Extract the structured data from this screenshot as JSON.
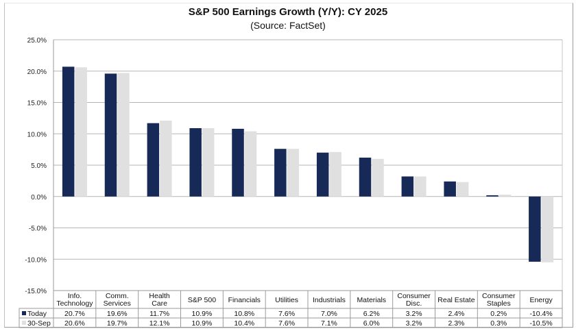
{
  "chart_data": {
    "type": "bar",
    "title": "S&P 500 Earnings Growth (Y/Y): CY 2025",
    "subtitle": "(Source: FactSet)",
    "xlabel": "",
    "ylabel": "",
    "ylim": [
      -15,
      25
    ],
    "yticks": [
      25,
      20,
      15,
      10,
      5,
      0,
      -5,
      -10,
      -15
    ],
    "ytick_labels": [
      "25.0%",
      "20.0%",
      "15.0%",
      "10.0%",
      "5.0%",
      "0.0%",
      "-5.0%",
      "-10.0%",
      "-15.0%"
    ],
    "grid": true,
    "legend_placement": "data-table-left",
    "categories": [
      [
        "Info.",
        "Technology"
      ],
      [
        "Comm.",
        "Services"
      ],
      [
        "Health",
        "Care"
      ],
      [
        "S&P 500"
      ],
      [
        "Financials"
      ],
      [
        "Utilities"
      ],
      [
        "Industrials"
      ],
      [
        "Materials"
      ],
      [
        "Consumer",
        "Disc."
      ],
      [
        "Real Estate"
      ],
      [
        "Consumer",
        "Staples"
      ],
      [
        "Energy"
      ]
    ],
    "series": [
      {
        "name": "Today",
        "color": "#172a57",
        "values": [
          20.7,
          19.6,
          11.7,
          10.9,
          10.8,
          7.6,
          7.0,
          6.2,
          3.2,
          2.4,
          0.2,
          -10.4
        ],
        "labels": [
          "20.7%",
          "19.6%",
          "11.7%",
          "10.9%",
          "10.8%",
          "7.6%",
          "7.0%",
          "6.2%",
          "3.2%",
          "2.4%",
          "0.2%",
          "-10.4%"
        ]
      },
      {
        "name": "30-Sep",
        "color": "#e0e0e0",
        "values": [
          20.6,
          19.7,
          12.1,
          10.9,
          10.4,
          7.6,
          7.1,
          6.0,
          3.2,
          2.3,
          0.3,
          -10.5
        ],
        "labels": [
          "20.6%",
          "19.7%",
          "12.1%",
          "10.9%",
          "10.4%",
          "7.6%",
          "7.1%",
          "6.0%",
          "3.2%",
          "2.3%",
          "0.3%",
          "-10.5%"
        ]
      }
    ]
  }
}
